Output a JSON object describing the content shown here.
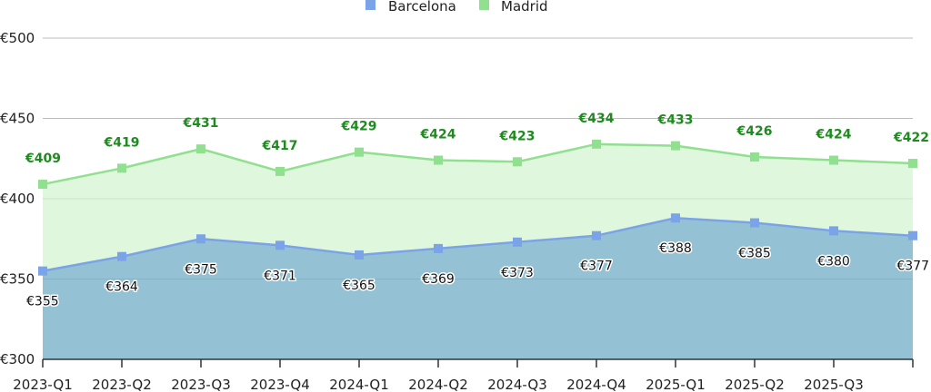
{
  "chart_data": {
    "type": "area",
    "categories": [
      "2023-Q1",
      "2023-Q2",
      "2023-Q3",
      "2023-Q4",
      "2024-Q1",
      "2024-Q2",
      "2024-Q3",
      "2024-Q4",
      "2025-Q1",
      "2025-Q2",
      "2025-Q3",
      ""
    ],
    "y_ticks": [
      "€300",
      "€350",
      "€400",
      "€450",
      "€500"
    ],
    "ylim": [
      300,
      500
    ],
    "grid": true,
    "legend_position": "top-center",
    "series": [
      {
        "name": "Barcelona",
        "color": "#7ba3e8",
        "fill": "#94c2d4",
        "values": [
          355,
          364,
          375,
          371,
          365,
          369,
          373,
          377,
          388,
          385,
          380,
          377
        ],
        "labels": [
          "€355",
          "€364",
          "€375",
          "€371",
          "€365",
          "€369",
          "€373",
          "€377",
          "€388",
          "€385",
          "€380",
          "€377"
        ]
      },
      {
        "name": "Madrid",
        "color": "#90e090",
        "fill": "#dff7dc",
        "values": [
          409,
          419,
          431,
          417,
          429,
          424,
          423,
          434,
          433,
          426,
          424,
          422
        ],
        "labels": [
          "€409",
          "€419",
          "€431",
          "€417",
          "€429",
          "€424",
          "€423",
          "€434",
          "€433",
          "€426",
          "€424",
          "€422"
        ]
      }
    ]
  }
}
